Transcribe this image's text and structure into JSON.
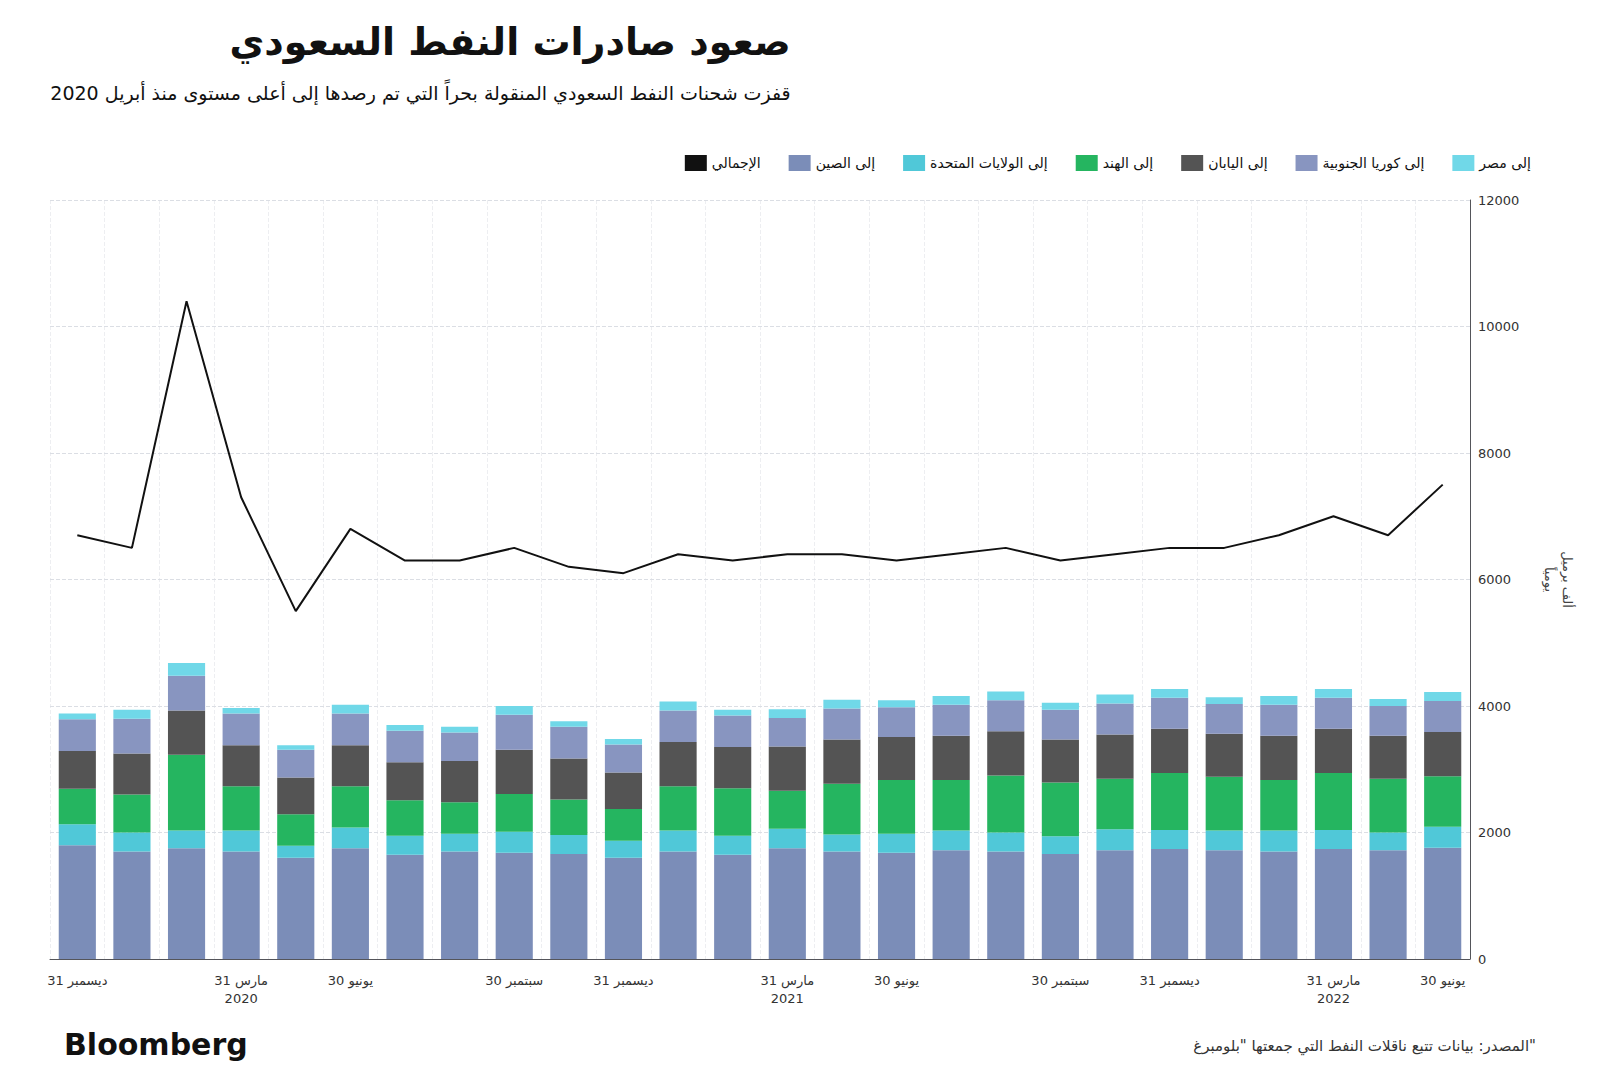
{
  "chart_data": {
    "type": "bar",
    "title": "صعود صادرات النفط السعودي",
    "subtitle": "قفزت شحنات النفط السعودي المنقولة بحراً التي تم رصدها إلى أعلى مستوى منذ أبريل 2020",
    "ylabel": "ألف برميل\nيومياً",
    "source": "المصدر: بيانات تتبع ناقلات النفط التي جمعتها \"بلومبرغ\"",
    "annotations": [
      "Bloomberg"
    ],
    "categories": [
      "31 ديسمبر",
      null,
      null,
      "31 مارس\n2020",
      null,
      "30 يونيو",
      null,
      null,
      "30 سبتمبر",
      null,
      "31 ديسمبر",
      null,
      null,
      "31 مارس\n2021",
      null,
      "30 يونيو",
      null,
      null,
      "30 سبتمبر",
      null,
      "31 ديسمبر",
      null,
      null,
      "31 مارس\n2022",
      null,
      "30 يونيو"
    ],
    "series": [
      {
        "name": "إلى الصين",
        "color": "#7b8db8",
        "values": [
          1800,
          1700,
          1750,
          1700,
          1600,
          1750,
          1650,
          1700,
          1680,
          1660,
          1600,
          1700,
          1650,
          1750,
          1700,
          1680,
          1720,
          1700,
          1660,
          1720,
          1740,
          1720,
          1700,
          1740,
          1720,
          1760
        ]
      },
      {
        "name": "إلى الولايات المتحدة",
        "color": "#50c8d8",
        "values": [
          330,
          300,
          280,
          330,
          190,
          330,
          300,
          280,
          330,
          300,
          270,
          330,
          300,
          310,
          270,
          300,
          310,
          300,
          280,
          330,
          300,
          310,
          330,
          300,
          280,
          330
        ]
      },
      {
        "name": "إلى الهند",
        "color": "#25b560",
        "values": [
          560,
          600,
          1200,
          700,
          500,
          650,
          560,
          500,
          600,
          560,
          500,
          700,
          750,
          600,
          800,
          850,
          800,
          900,
          850,
          800,
          900,
          850,
          800,
          900,
          850,
          800
        ]
      },
      {
        "name": "إلى اليابان",
        "color": "#545454",
        "values": [
          600,
          650,
          700,
          650,
          580,
          650,
          600,
          650,
          700,
          650,
          580,
          700,
          650,
          700,
          700,
          680,
          700,
          700,
          680,
          700,
          700,
          680,
          700,
          700,
          680,
          700
        ]
      },
      {
        "name": "إلى كوريا الجنوبية",
        "color": "#8895c0",
        "values": [
          500,
          550,
          550,
          500,
          440,
          500,
          500,
          450,
          550,
          500,
          440,
          500,
          500,
          450,
          490,
          470,
          490,
          490,
          470,
          490,
          490,
          470,
          490,
          490,
          470,
          490
        ]
      },
      {
        "name": "إلى مصر",
        "color": "#70d8e8",
        "values": [
          90,
          140,
          200,
          90,
          70,
          140,
          90,
          90,
          140,
          90,
          90,
          140,
          90,
          140,
          140,
          110,
          140,
          140,
          110,
          140,
          140,
          110,
          140,
          140,
          110,
          140
        ]
      },
      {
        "name": "الإجمالي",
        "type": "line",
        "color": "#111111",
        "values": [
          6700,
          6500,
          10400,
          7300,
          5500,
          6800,
          6300,
          6300,
          6500,
          6200,
          6100,
          6400,
          6300,
          6400,
          6400,
          6300,
          6400,
          6500,
          6300,
          6400,
          6500,
          6500,
          6700,
          7000,
          6700,
          7500
        ]
      }
    ],
    "stacked": true,
    "ylim": [
      0,
      12000
    ],
    "yticks": [
      0,
      2000,
      4000,
      6000,
      8000,
      10000,
      12000
    ],
    "grid": true,
    "legend": "top"
  }
}
